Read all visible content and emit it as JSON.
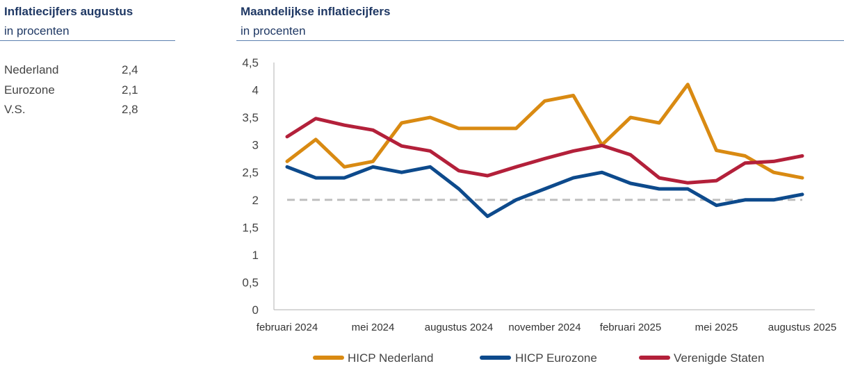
{
  "left_panel": {
    "title": "Inflatiecijfers augustus",
    "subtitle": "in procenten",
    "rows": [
      {
        "label": "Nederland",
        "value": "2,4"
      },
      {
        "label": "Eurozone",
        "value": "2,1"
      },
      {
        "label": "V.S.",
        "value": "2,8"
      }
    ]
  },
  "chart_data": {
    "type": "line",
    "title": "Maandelijkse inflatiecijfers",
    "subtitle": "in procenten",
    "ylim": [
      0,
      4.5
    ],
    "yticks": [
      "0",
      "0,5",
      "1",
      "1,5",
      "2",
      "2,5",
      "3",
      "3,5",
      "4",
      "4,5"
    ],
    "x_tick_labels": [
      {
        "index": 0,
        "label": "februari 2024"
      },
      {
        "index": 3,
        "label": "mei 2024"
      },
      {
        "index": 6,
        "label": "augustus 2024"
      },
      {
        "index": 9,
        "label": "november 2024"
      },
      {
        "index": 12,
        "label": "februari 2025"
      },
      {
        "index": 15,
        "label": "mei 2025"
      },
      {
        "index": 18,
        "label": "augustus 2025"
      }
    ],
    "target_line": 2,
    "legend_position": "bottom",
    "series": [
      {
        "name": "HICP Nederland",
        "color": "#d98a12",
        "values": [
          2.7,
          3.1,
          2.6,
          2.7,
          3.4,
          3.5,
          3.3,
          3.3,
          3.3,
          3.8,
          3.9,
          3.0,
          3.5,
          3.4,
          4.1,
          2.9,
          2.8,
          2.5,
          2.4
        ]
      },
      {
        "name": "HICP Eurozone",
        "color": "#0d4a8c",
        "values": [
          2.6,
          2.4,
          2.4,
          2.6,
          2.5,
          2.6,
          2.2,
          1.7,
          2.0,
          2.2,
          2.4,
          2.5,
          2.3,
          2.2,
          2.2,
          1.9,
          2.0,
          2.0,
          2.1
        ]
      },
      {
        "name": "Verenigde Staten",
        "color": "#b3203a",
        "values": [
          3.15,
          3.48,
          3.36,
          3.27,
          2.98,
          2.89,
          2.53,
          2.44,
          2.6,
          2.75,
          2.89,
          2.99,
          2.82,
          2.4,
          2.31,
          2.35,
          2.67,
          2.7,
          2.8
        ]
      }
    ]
  }
}
